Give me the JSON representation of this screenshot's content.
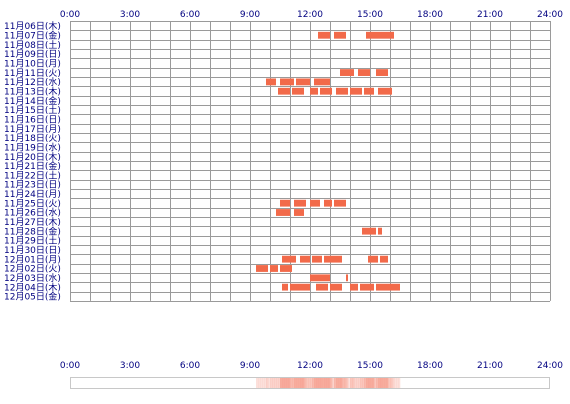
{
  "chart_data": {
    "type": "heatmap",
    "x_ticks": [
      "0:00",
      "3:00",
      "6:00",
      "9:00",
      "12:00",
      "15:00",
      "18:00",
      "21:00",
      "24:00"
    ],
    "x_range_hours": [
      0,
      24
    ],
    "grid": true,
    "colors": {
      "activity": "#f26a4a",
      "grid": "#9a9a9a",
      "text": "#000080",
      "summary_strip": "#f6a090"
    },
    "rows": [
      {
        "date": "11月06日(木)",
        "segments": []
      },
      {
        "date": "11月07日(金)",
        "segments": [
          [
            12.4,
            13.0
          ],
          [
            13.2,
            13.8
          ],
          [
            14.8,
            16.2
          ]
        ]
      },
      {
        "date": "11月08日(土)",
        "segments": []
      },
      {
        "date": "11月09日(日)",
        "segments": []
      },
      {
        "date": "11月10日(月)",
        "segments": []
      },
      {
        "date": "11月11日(火)",
        "segments": [
          [
            13.5,
            14.2
          ],
          [
            14.4,
            15.0
          ],
          [
            15.3,
            15.9
          ]
        ]
      },
      {
        "date": "11月12日(水)",
        "segments": [
          [
            9.8,
            10.3
          ],
          [
            10.5,
            11.2
          ],
          [
            11.3,
            12.0
          ],
          [
            12.2,
            13.0
          ]
        ]
      },
      {
        "date": "11月13日(木)",
        "segments": [
          [
            10.4,
            11.0
          ],
          [
            11.1,
            11.7
          ],
          [
            12.0,
            12.4
          ],
          [
            12.5,
            13.1
          ],
          [
            13.3,
            13.9
          ],
          [
            14.0,
            14.6
          ],
          [
            14.7,
            15.2
          ],
          [
            15.4,
            16.1
          ]
        ]
      },
      {
        "date": "11月14日(金)",
        "segments": []
      },
      {
        "date": "11月15日(土)",
        "segments": []
      },
      {
        "date": "11月16日(日)",
        "segments": []
      },
      {
        "date": "11月17日(月)",
        "segments": []
      },
      {
        "date": "11月18日(火)",
        "segments": []
      },
      {
        "date": "11月19日(水)",
        "segments": []
      },
      {
        "date": "11月20日(木)",
        "segments": []
      },
      {
        "date": "11月21日(金)",
        "segments": []
      },
      {
        "date": "11月22日(土)",
        "segments": []
      },
      {
        "date": "11月23日(日)",
        "segments": []
      },
      {
        "date": "11月24日(月)",
        "segments": []
      },
      {
        "date": "11月25日(火)",
        "segments": [
          [
            10.5,
            11.0
          ],
          [
            11.2,
            11.8
          ],
          [
            12.0,
            12.5
          ],
          [
            12.7,
            13.1
          ],
          [
            13.2,
            13.8
          ]
        ]
      },
      {
        "date": "11月26日(水)",
        "segments": [
          [
            10.3,
            11.0
          ],
          [
            11.2,
            11.7
          ]
        ]
      },
      {
        "date": "11月27日(木)",
        "segments": []
      },
      {
        "date": "11月28日(金)",
        "segments": [
          [
            14.6,
            15.3
          ],
          [
            15.4,
            15.6
          ]
        ]
      },
      {
        "date": "11月29日(土)",
        "segments": []
      },
      {
        "date": "11月30日(日)",
        "segments": []
      },
      {
        "date": "12月01日(月)",
        "segments": [
          [
            10.6,
            11.3
          ],
          [
            11.5,
            12.0
          ],
          [
            12.1,
            12.6
          ],
          [
            12.7,
            13.6
          ],
          [
            14.9,
            15.4
          ],
          [
            15.5,
            15.9
          ]
        ]
      },
      {
        "date": "12月02日(火)",
        "segments": [
          [
            9.3,
            9.9
          ],
          [
            10.0,
            10.4
          ],
          [
            10.5,
            11.1
          ]
        ]
      },
      {
        "date": "12月03日(水)",
        "segments": [
          [
            12.0,
            13.0
          ],
          [
            13.8,
            13.9
          ]
        ]
      },
      {
        "date": "12月04日(木)",
        "segments": [
          [
            10.6,
            10.9
          ],
          [
            11.0,
            12.0
          ],
          [
            12.3,
            12.9
          ],
          [
            13.0,
            13.6
          ],
          [
            14.0,
            14.4
          ],
          [
            14.5,
            15.2
          ],
          [
            15.3,
            16.5
          ]
        ]
      },
      {
        "date": "12月05日(金)",
        "segments": []
      }
    ]
  }
}
